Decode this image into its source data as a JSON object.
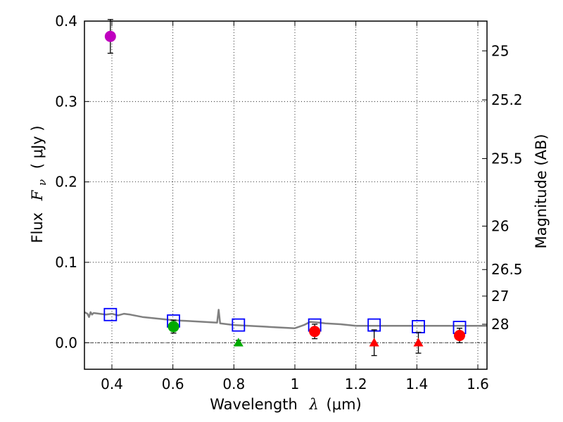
{
  "chart_data": {
    "type": "scatter",
    "xlabel_text": "Wavelength",
    "xlabel_symbol": "λ",
    "xlabel_unit": "(μm)",
    "ylabel_text": "Flux",
    "ylabel_symbol": "F",
    "ylabel_subscript": "ν",
    "ylabel_unit": "( μJy )",
    "y2label": "Magnitude (AB)",
    "xlim": [
      0.31,
      1.63
    ],
    "ylim": [
      -0.033,
      0.4
    ],
    "grid": true,
    "x_ticks": [
      0.4,
      0.6,
      0.8,
      1.0,
      1.2,
      1.4,
      1.6
    ],
    "x_tick_labels": [
      "0.4",
      "0.6",
      "0.8",
      "1",
      "1.2",
      "1.4",
      "1.6"
    ],
    "y_ticks": [
      0.0,
      0.1,
      0.2,
      0.3,
      0.4
    ],
    "y_tick_labels": [
      "0.0",
      "0.1",
      "0.2",
      "0.3",
      "0.4"
    ],
    "y2_ticks": [
      {
        "label": "25",
        "flux": 0.363
      },
      {
        "label": "25.2",
        "flux": 0.302
      },
      {
        "label": "25.5",
        "flux": 0.229
      },
      {
        "label": "26",
        "flux": 0.145
      },
      {
        "label": "26.5",
        "flux": 0.091
      },
      {
        "label": "27",
        "flux": 0.058
      },
      {
        "label": "28",
        "flux": 0.023
      }
    ],
    "model_spectrum": {
      "color": "#808080",
      "x": [
        0.31,
        0.32,
        0.325,
        0.33,
        0.335,
        0.34,
        0.36,
        0.38,
        0.4,
        0.42,
        0.44,
        0.46,
        0.5,
        0.55,
        0.6,
        0.65,
        0.7,
        0.745,
        0.75,
        0.755,
        0.8,
        0.85,
        0.9,
        0.95,
        1.0,
        1.03,
        1.05,
        1.08,
        1.1,
        1.15,
        1.2,
        1.3,
        1.4,
        1.5,
        1.6,
        1.63
      ],
      "y": [
        0.038,
        0.036,
        0.032,
        0.038,
        0.035,
        0.037,
        0.036,
        0.035,
        0.036,
        0.034,
        0.036,
        0.035,
        0.032,
        0.03,
        0.028,
        0.027,
        0.026,
        0.025,
        0.041,
        0.024,
        0.022,
        0.021,
        0.02,
        0.019,
        0.018,
        0.022,
        0.026,
        0.025,
        0.024,
        0.023,
        0.021,
        0.021,
        0.021,
        0.021,
        0.021,
        0.021
      ]
    },
    "model_points": {
      "marker": "open-square",
      "color": "#0000ff",
      "x": [
        0.395,
        0.602,
        0.815,
        1.065,
        1.26,
        1.405,
        1.54
      ],
      "y": [
        0.035,
        0.027,
        0.022,
        0.022,
        0.022,
        0.02,
        0.019
      ]
    },
    "observed": [
      {
        "x": 0.395,
        "y": 0.381,
        "yerr": 0.021,
        "marker": "circle",
        "color": "#bf00bf"
      },
      {
        "x": 0.602,
        "y": 0.02,
        "yerr": 0.008,
        "marker": "circle",
        "color": "#00aa00"
      },
      {
        "x": 0.815,
        "y": 0.0,
        "yerr": 0.003,
        "marker": "triangle",
        "color": "#00aa00"
      },
      {
        "x": 1.065,
        "y": 0.014,
        "yerr": 0.009,
        "marker": "circle",
        "color": "#ff0000"
      },
      {
        "x": 1.26,
        "y": 0.0,
        "yerr": 0.016,
        "marker": "triangle",
        "color": "#ff0000"
      },
      {
        "x": 1.405,
        "y": 0.0,
        "yerr": 0.013,
        "marker": "triangle",
        "color": "#ff0000"
      },
      {
        "x": 1.54,
        "y": 0.009,
        "yerr": 0.009,
        "marker": "circle",
        "color": "#ff0000"
      }
    ],
    "zero_line": {
      "y": 0.0,
      "style": "dashdot"
    }
  }
}
